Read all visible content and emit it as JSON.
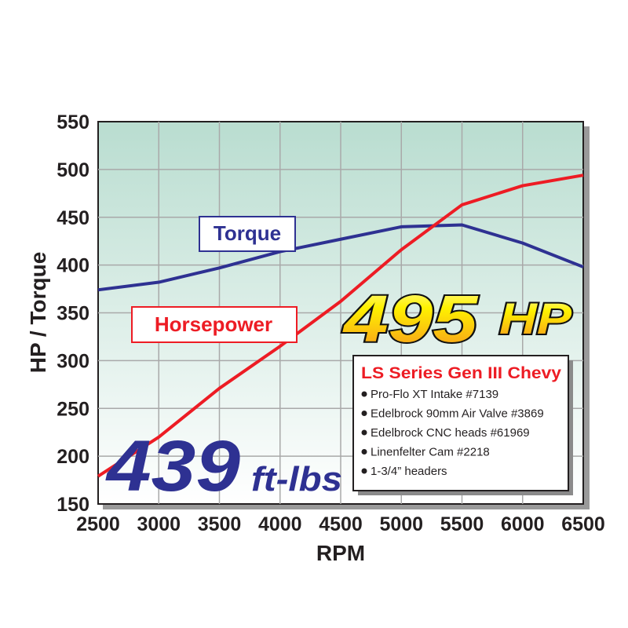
{
  "chart_data": {
    "type": "line",
    "xlabel": "RPM",
    "ylabel": "HP / Torque",
    "xlim": [
      2500,
      6500
    ],
    "ylim": [
      150,
      550
    ],
    "grid": true,
    "x": [
      2500,
      3000,
      3500,
      4000,
      4500,
      5000,
      5500,
      6000,
      6500
    ],
    "xticks": [
      "2500",
      "3000",
      "3500",
      "4000",
      "4500",
      "5000",
      "5500",
      "6000",
      "6500"
    ],
    "yticks": [
      "150",
      "200",
      "250",
      "300",
      "350",
      "400",
      "450",
      "500",
      "550"
    ],
    "series": [
      {
        "name": "Torque",
        "color": "#2e3192",
        "values": [
          374,
          382,
          397,
          414,
          427,
          440,
          442,
          423,
          398
        ]
      },
      {
        "name": "Horsepower",
        "color": "#ed1c24",
        "values": [
          179,
          220,
          271,
          315,
          362,
          416,
          463,
          483,
          494
        ]
      }
    ],
    "annotations": {
      "hp_big_number": "495",
      "hp_big_unit": "HP",
      "torque_big_number": "439",
      "torque_big_unit": "ft-lbs"
    },
    "specs": {
      "title": "LS Series Gen III Chevy",
      "items": [
        "Pro-Flo XT Intake #7139",
        "Edelbrock 90mm Air Valve #3869",
        "Edelbrock CNC heads #61969",
        "Linenfelter Cam #2218",
        "1-3/4” headers"
      ]
    },
    "colors": {
      "plot_top": "#b9ddd0",
      "plot_bottom": "#ffffff",
      "grid": "#a9a9a9"
    }
  }
}
